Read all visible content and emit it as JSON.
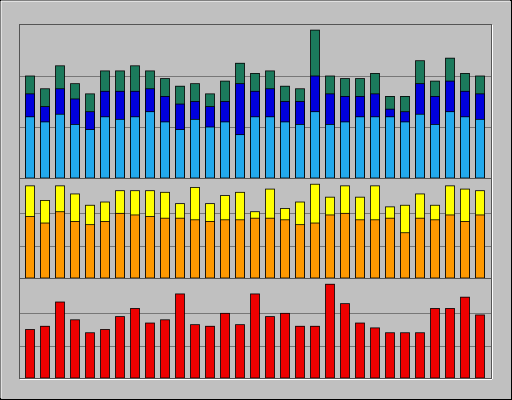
{
  "chart_data": [
    {
      "type": "bar",
      "ylim": [
        0,
        3
      ],
      "yticks": [
        1,
        2
      ],
      "grid": true,
      "series": [
        {
          "color": "#1b7a5c",
          "values": [
            2.0,
            1.75,
            2.2,
            1.85,
            1.65,
            2.1,
            2.1,
            2.2,
            2.1,
            1.95,
            1.8,
            1.85,
            1.65,
            1.9,
            2.25,
            2.05,
            2.1,
            1.8,
            1.75,
            2.9,
            2.0,
            1.95,
            1.95,
            2.05,
            1.6,
            1.6,
            2.3,
            1.9,
            2.35,
            2.05,
            2.0
          ]
        },
        {
          "color": "#0000dd",
          "values": [
            1.65,
            1.4,
            1.75,
            1.55,
            1.3,
            1.7,
            1.7,
            1.7,
            1.75,
            1.6,
            1.45,
            1.5,
            1.4,
            1.5,
            1.85,
            1.7,
            1.75,
            1.5,
            1.5,
            2.0,
            1.65,
            1.6,
            1.6,
            1.65,
            1.35,
            1.3,
            1.85,
            1.6,
            1.9,
            1.7,
            1.65
          ]
        },
        {
          "color": "#22aaee",
          "values": [
            1.2,
            1.1,
            1.25,
            1.05,
            0.95,
            1.2,
            1.15,
            1.2,
            1.3,
            1.1,
            0.95,
            1.15,
            1.0,
            1.1,
            0.85,
            1.2,
            1.2,
            1.1,
            1.05,
            1.3,
            1.05,
            1.1,
            1.2,
            1.2,
            1.2,
            1.1,
            1.25,
            1.05,
            1.3,
            1.2,
            1.15
          ]
        }
      ]
    },
    {
      "type": "bar",
      "ylim": [
        0,
        3
      ],
      "yticks": [
        1,
        2
      ],
      "grid": true,
      "series": [
        {
          "color": "#ffff00",
          "values": [
            2.85,
            2.4,
            2.85,
            2.6,
            2.25,
            2.35,
            2.7,
            2.7,
            2.7,
            2.65,
            2.3,
            2.8,
            2.3,
            2.55,
            2.65,
            2.05,
            2.75,
            2.15,
            2.35,
            2.9,
            2.5,
            2.85,
            2.5,
            2.85,
            2.2,
            2.25,
            2.6,
            2.25,
            2.85,
            2.75,
            2.7
          ]
        },
        {
          "color": "#ff9900",
          "values": [
            1.9,
            1.7,
            2.05,
            1.75,
            1.65,
            1.75,
            2.0,
            1.95,
            1.9,
            1.85,
            1.85,
            1.8,
            1.75,
            1.8,
            1.8,
            1.85,
            1.85,
            1.8,
            1.65,
            1.7,
            1.95,
            2.0,
            1.8,
            1.8,
            1.85,
            1.4,
            1.85,
            1.8,
            1.95,
            1.75,
            1.95
          ]
        }
      ]
    },
    {
      "type": "bar",
      "ylim": [
        0,
        3
      ],
      "yticks": [
        1,
        2
      ],
      "grid": true,
      "series": [
        {
          "color": "#ee0000",
          "values": [
            1.5,
            1.6,
            2.35,
            1.8,
            1.4,
            1.5,
            1.9,
            2.15,
            1.7,
            1.8,
            2.6,
            1.65,
            1.6,
            2.0,
            1.65,
            2.6,
            1.9,
            2.0,
            1.6,
            1.6,
            2.9,
            2.3,
            1.7,
            1.55,
            1.4,
            1.4,
            1.4,
            2.15,
            2.15,
            2.5,
            1.95
          ]
        }
      ]
    }
  ]
}
